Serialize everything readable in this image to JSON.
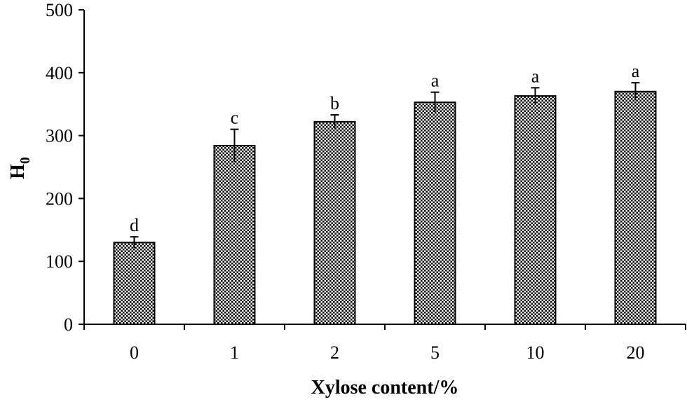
{
  "chart_data": {
    "type": "bar",
    "title": "",
    "xlabel": "Xylose content/%",
    "ylabel": "H",
    "ylabel_subscript": "0",
    "categories": [
      "0",
      "1",
      "2",
      "5",
      "10",
      "20"
    ],
    "series": [
      {
        "values": [
          130,
          284,
          322,
          353,
          363,
          370
        ],
        "errors": [
          9,
          26,
          11,
          16,
          13,
          14
        ]
      }
    ],
    "significance_letters": [
      "d",
      "c",
      "b",
      "a",
      "a",
      "a"
    ],
    "ylim": [
      0,
      500
    ],
    "yticks": [
      0,
      100,
      200,
      300,
      400,
      500
    ],
    "grid": false,
    "legend": "none",
    "bar_fill_pattern": "dotted-crosshatch",
    "colors": {
      "bar_fill": "#6e6e6e",
      "bar_edge": "#000000",
      "axis": "#000000"
    }
  }
}
